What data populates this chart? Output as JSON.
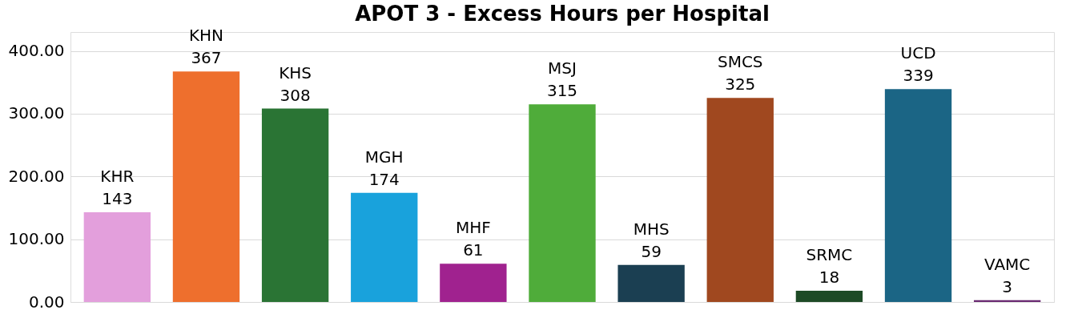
{
  "chart_data": {
    "type": "bar",
    "title": "APOT 3 - Excess Hours per Hospital",
    "categories": [
      "KHR",
      "KHN",
      "KHS",
      "MGH",
      "MHF",
      "MSJ",
      "MHS",
      "SMCS",
      "SRMC",
      "UCD",
      "VAMC"
    ],
    "values": [
      143,
      367,
      308,
      174,
      61,
      315,
      59,
      325,
      18,
      339,
      3
    ],
    "colors": [
      "#e39fdc",
      "#ee6f2d",
      "#2a7434",
      "#19a2dc",
      "#a0228f",
      "#4fac3a",
      "#1b3f52",
      "#a0481f",
      "#1d4a26",
      "#1b6585",
      "#6a2a72"
    ],
    "ylim": [
      0,
      430
    ],
    "yticks": [
      {
        "value": 0,
        "label": "0.00"
      },
      {
        "value": 100,
        "label": "100.00"
      },
      {
        "value": 200,
        "label": "200.00"
      },
      {
        "value": 300,
        "label": "300.00"
      },
      {
        "value": 400,
        "label": "400.00"
      }
    ],
    "grid": "y",
    "data_labels": true
  }
}
